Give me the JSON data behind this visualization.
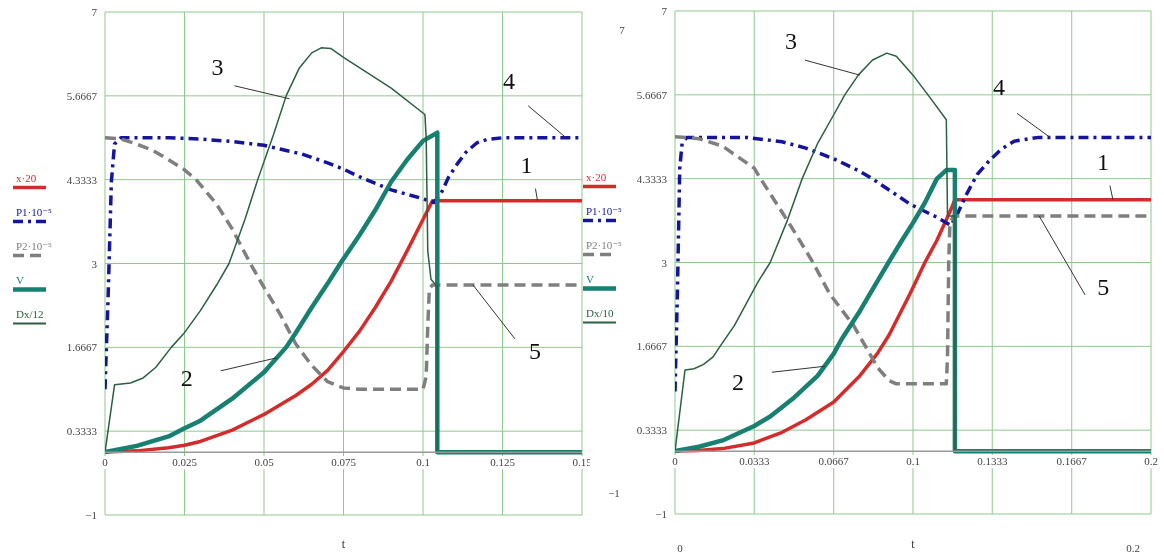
{
  "chart_data": [
    {
      "type": "line",
      "xlabel": "t",
      "xlim": [
        0,
        0.15
      ],
      "xticks": [
        0,
        0.025,
        0.05,
        0.075,
        0.1,
        0.125,
        0.15
      ],
      "ylim": [
        -1,
        7
      ],
      "yticks": [
        {
          "value": -1,
          "label": "−1"
        },
        0.3333,
        1.6667,
        3,
        4.3333,
        5.6667,
        7
      ],
      "grid": true,
      "legend": "left",
      "annotations": [
        {
          "text": "1",
          "x": 0.136,
          "y": 4.0
        },
        {
          "text": "2",
          "x": 0.054,
          "y": 1.5
        },
        {
          "text": "3",
          "x": 0.058,
          "y": 5.62
        },
        {
          "text": "4",
          "x": 0.145,
          "y": 5.0
        },
        {
          "text": "5",
          "x": 0.1157,
          "y": 2.66
        }
      ],
      "series": [
        {
          "name": "x·20",
          "color": "#d42b2b",
          "line_style": "solid",
          "x": [
            0,
            0.01,
            0.02,
            0.025,
            0.03,
            0.04,
            0.05,
            0.06,
            0.065,
            0.07,
            0.075,
            0.08,
            0.085,
            0.09,
            0.095,
            0.1,
            0.103,
            0.15
          ],
          "values": [
            0,
            0.02,
            0.07,
            0.11,
            0.17,
            0.35,
            0.6,
            0.9,
            1.08,
            1.3,
            1.6,
            1.92,
            2.3,
            2.72,
            3.2,
            3.7,
            4.0,
            4.0
          ]
        },
        {
          "name": "P1·10⁻⁵",
          "color": "#14149c",
          "line_style": "dashdot",
          "x": [
            0,
            0.001,
            0.002,
            0.003,
            0.005,
            0.02,
            0.03,
            0.04,
            0.05,
            0.055,
            0.062,
            0.07,
            0.075,
            0.08,
            0.09,
            0.1,
            0.1035,
            0.106,
            0.108,
            0.111,
            0.1135,
            0.117,
            0.12,
            0.125,
            0.15
          ],
          "values": [
            1.0,
            2.5,
            4.3,
            4.9,
            5.0,
            5.0,
            4.98,
            4.94,
            4.88,
            4.82,
            4.74,
            4.6,
            4.5,
            4.38,
            4.17,
            4.03,
            3.97,
            4.15,
            4.37,
            4.6,
            4.77,
            4.92,
            4.97,
            5.0,
            5.0
          ]
        },
        {
          "name": "P2·10⁻⁵",
          "color": "#7f7f7f",
          "line_style": "dashed",
          "x": [
            0,
            0.005,
            0.01,
            0.015,
            0.02,
            0.025,
            0.0287,
            0.035,
            0.04,
            0.0457,
            0.05,
            0.055,
            0.06,
            0.065,
            0.07,
            0.075,
            0.08,
            0.1,
            0.101,
            0.1015,
            0.102,
            0.103,
            0.15
          ],
          "values": [
            5.0,
            4.98,
            4.9,
            4.8,
            4.65,
            4.49,
            4.33,
            3.95,
            3.55,
            3.0,
            2.62,
            2.2,
            1.72,
            1.38,
            1.12,
            1.02,
            1.0,
            1.0,
            1.2,
            2.0,
            2.6,
            2.66,
            2.66
          ]
        },
        {
          "name": "V",
          "color": "#178070",
          "line_style": "solid",
          "x": [
            0,
            0.01,
            0.02,
            0.025,
            0.03,
            0.04,
            0.05,
            0.057,
            0.06,
            0.065,
            0.07,
            0.074,
            0.08,
            0.085,
            0.09,
            0.095,
            0.1,
            0.1045,
            0.1045,
            0.15
          ],
          "values": [
            0,
            0.1,
            0.25,
            0.38,
            0.5,
            0.85,
            1.27,
            1.67,
            1.9,
            2.3,
            2.68,
            3.0,
            3.45,
            3.85,
            4.3,
            4.65,
            4.95,
            5.08,
            0,
            0
          ]
        },
        {
          "name": "Dx/12",
          "color": "#2b6040",
          "line_style": "solid",
          "x": [
            0,
            0.003,
            0.008,
            0.012,
            0.016,
            0.0209,
            0.025,
            0.03,
            0.035,
            0.039,
            0.044,
            0.048,
            0.053,
            0.057,
            0.061,
            0.065,
            0.068,
            0.071,
            0.075,
            0.09,
            0.1006,
            0.101,
            0.1015,
            0.1025,
            0.104,
            0.1045,
            0.1045,
            0.15
          ],
          "values": [
            0,
            1.07,
            1.1,
            1.18,
            1.35,
            1.67,
            1.9,
            2.25,
            2.65,
            3.0,
            3.7,
            4.33,
            5.05,
            5.67,
            6.1,
            6.35,
            6.43,
            6.42,
            6.28,
            5.79,
            5.37,
            5.0,
            3.2,
            2.75,
            2.66,
            2.66,
            0,
            0
          ]
        }
      ]
    },
    {
      "type": "line",
      "xlabel": "t",
      "xlim": [
        0,
        0.2
      ],
      "xticks": [
        0,
        0.0333,
        0.0667,
        0.1,
        0.1333,
        0.1667,
        0.2
      ],
      "ylim": [
        -1,
        7
      ],
      "yticks": [
        {
          "value": -1,
          "label": "−1"
        },
        0.3333,
        1.6667,
        3,
        4.3333,
        5.6667,
        7
      ],
      "grid": true,
      "legend": "left",
      "annotations": [
        {
          "text": "1",
          "x": 0.184,
          "y": 4.0
        },
        {
          "text": "2",
          "x": 0.063,
          "y": 1.35
        },
        {
          "text": "3",
          "x": 0.0777,
          "y": 5.98
        },
        {
          "text": "4",
          "x": 0.1576,
          "y": 4.99
        },
        {
          "text": "5",
          "x": 0.153,
          "y": 3.74
        },
        "7",
        "−1",
        "0",
        "0.2"
      ],
      "series": [
        {
          "name": "x·20",
          "color": "#d42b2b",
          "line_style": "solid",
          "x": [
            0,
            0.01,
            0.02,
            0.0333,
            0.045,
            0.055,
            0.0667,
            0.0777,
            0.085,
            0.09,
            0.0987,
            0.105,
            0.11,
            0.114,
            0.116,
            0.1176,
            0.2
          ],
          "values": [
            0,
            0.01,
            0.04,
            0.13,
            0.3,
            0.5,
            0.78,
            1.2,
            1.55,
            1.85,
            2.5,
            3.0,
            3.35,
            3.68,
            3.85,
            4.0,
            4.0
          ]
        },
        {
          "name": "P1·10⁻⁵",
          "color": "#14149c",
          "line_style": "dashdot",
          "x": [
            0,
            0.001,
            0.002,
            0.003,
            0.005,
            0.03,
            0.045,
            0.055,
            0.0667,
            0.0777,
            0.083,
            0.0987,
            0.11,
            0.116,
            0.119,
            0.1227,
            0.127,
            0.1318,
            0.137,
            0.1425,
            0.1528,
            0.2
          ],
          "values": [
            0.95,
            2.5,
            4.5,
            4.9,
            4.99,
            4.99,
            4.92,
            4.82,
            4.65,
            4.45,
            4.33,
            3.93,
            3.72,
            3.59,
            3.8,
            4.1,
            4.4,
            4.61,
            4.8,
            4.93,
            4.99,
            4.99
          ]
        },
        {
          "name": "P2·10⁻⁵",
          "color": "#7f7f7f",
          "line_style": "dashed",
          "x": [
            0,
            0.01,
            0.02,
            0.0333,
            0.036,
            0.045,
            0.05,
            0.058,
            0.065,
            0.075,
            0.08,
            0.0853,
            0.09,
            0.093,
            0.114,
            0.1145,
            0.115,
            0.1155,
            0.117,
            0.2
          ],
          "values": [
            5.0,
            4.97,
            4.85,
            4.5,
            4.33,
            3.8,
            3.5,
            3.0,
            2.5,
            2.0,
            1.67,
            1.32,
            1.12,
            1.07,
            1.07,
            1.5,
            3.0,
            3.6,
            3.74,
            3.74
          ]
        },
        {
          "name": "V",
          "color": "#178070",
          "line_style": "solid",
          "x": [
            0,
            0.01,
            0.02,
            0.0333,
            0.04,
            0.05,
            0.06,
            0.0667,
            0.07,
            0.0777,
            0.085,
            0.0897,
            0.095,
            0.1,
            0.105,
            0.11,
            0.114,
            0.1176,
            0.1176,
            0.2
          ],
          "values": [
            0,
            0.07,
            0.17,
            0.4,
            0.55,
            0.85,
            1.2,
            1.55,
            1.78,
            2.23,
            2.7,
            3.0,
            3.33,
            3.63,
            3.95,
            4.33,
            4.47,
            4.47,
            0,
            0
          ]
        },
        {
          "name": "Dx/10",
          "color": "#2b6040",
          "line_style": "solid",
          "x": [
            0,
            0.0042,
            0.008,
            0.012,
            0.016,
            0.019,
            0.025,
            0.03,
            0.035,
            0.04,
            0.047,
            0.0534,
            0.06,
            0.0667,
            0.0714,
            0.077,
            0.083,
            0.089,
            0.093,
            0.1,
            0.107,
            0.114,
            0.1145,
            0.1176,
            0.1176,
            0.2
          ],
          "values": [
            0,
            1.29,
            1.31,
            1.38,
            1.5,
            1.67,
            2.0,
            2.35,
            2.7,
            3.0,
            3.65,
            4.33,
            4.9,
            5.35,
            5.67,
            5.98,
            6.22,
            6.33,
            6.28,
            5.98,
            5.63,
            5.27,
            3.74,
            3.74,
            0,
            0
          ]
        }
      ]
    }
  ]
}
